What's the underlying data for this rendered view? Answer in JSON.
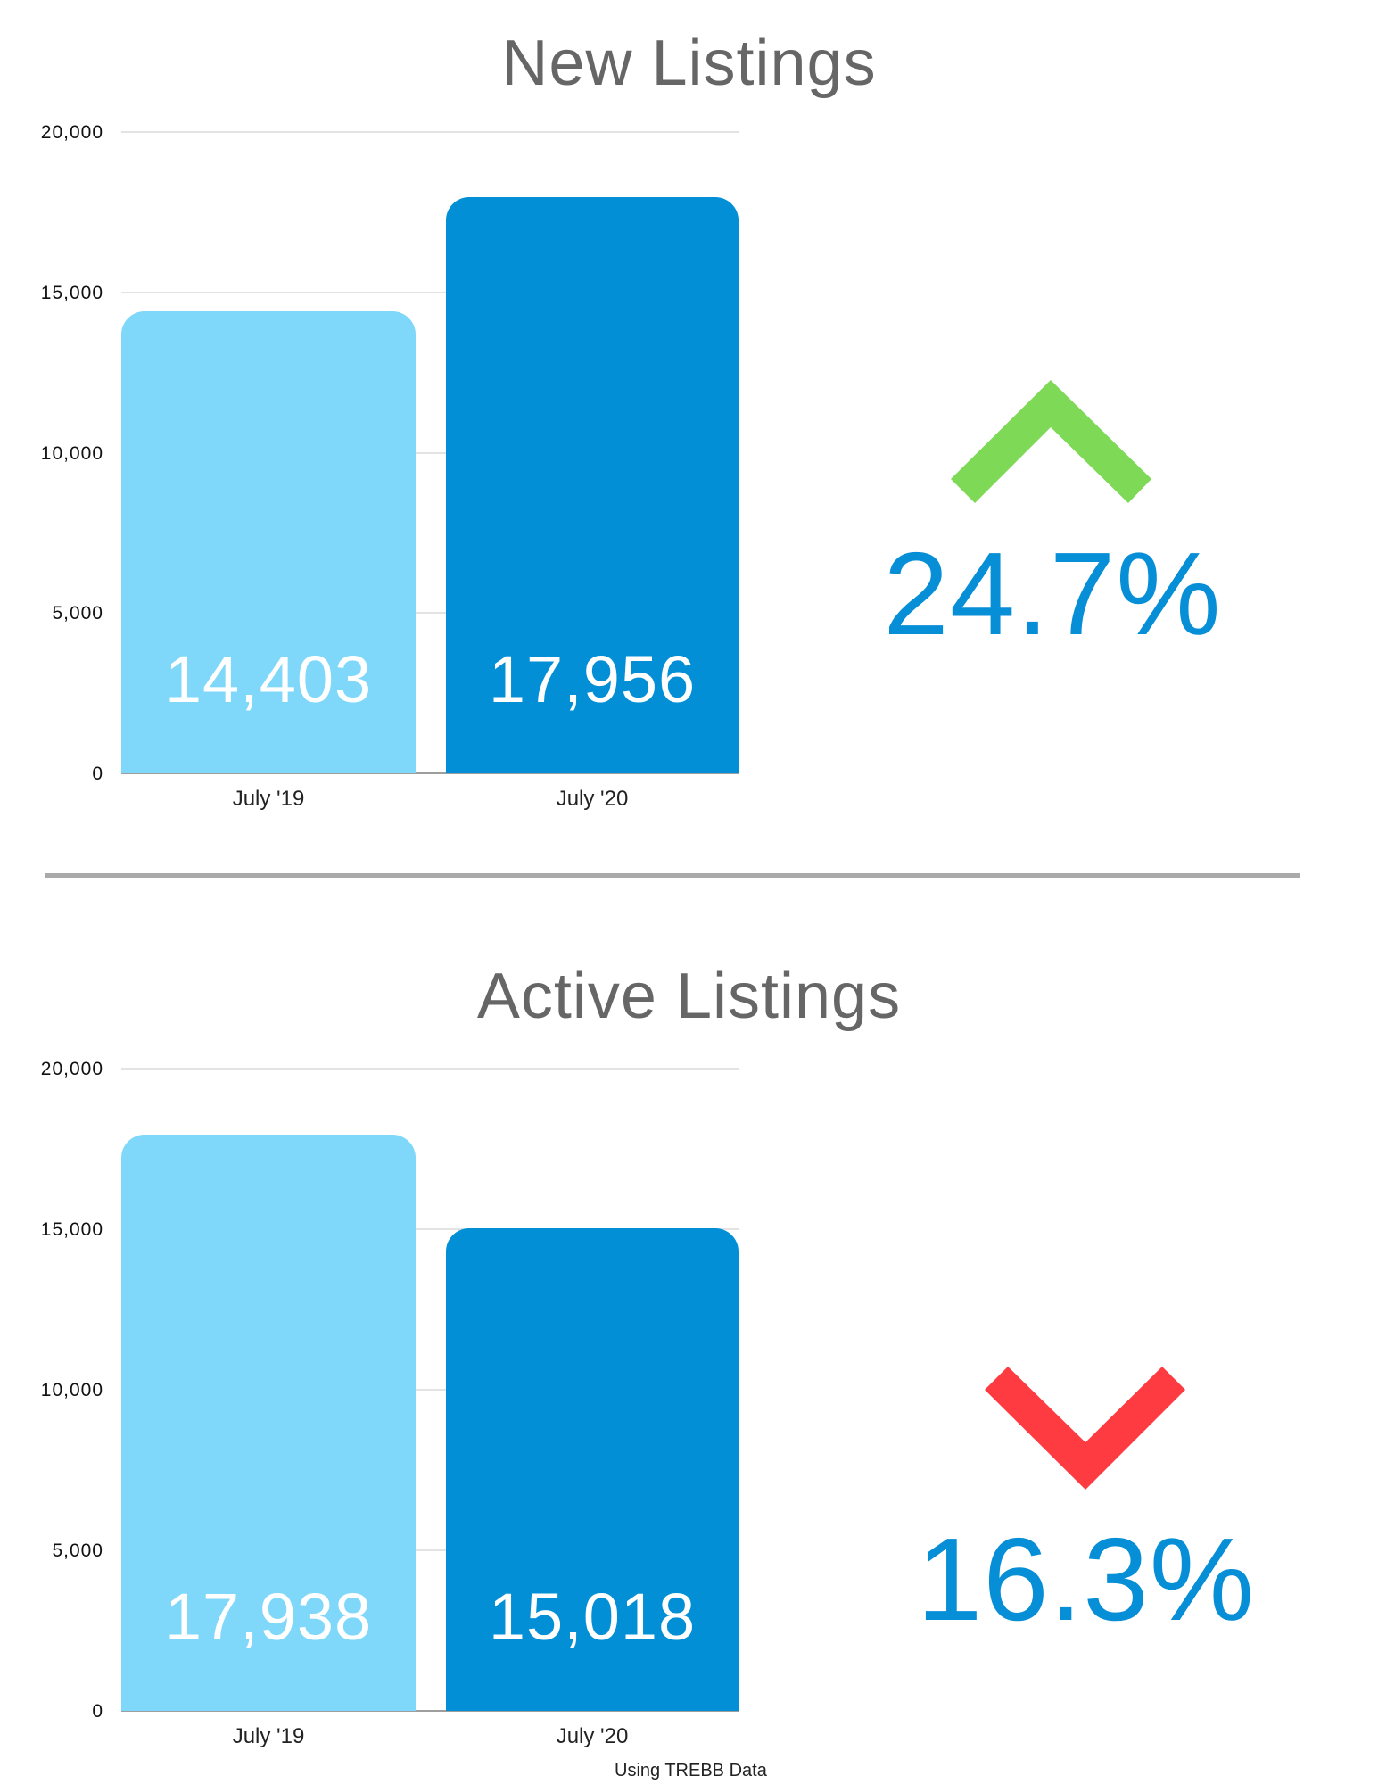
{
  "colors": {
    "bar_prev": "#7FD8F9",
    "bar_curr": "#028FD6",
    "title": "#666666",
    "up": "#7ED957",
    "down": "#FF3B42",
    "percent": "#068FD6",
    "divider": "#AAAAAA",
    "grid": "#E3E3E3"
  },
  "sections": [
    {
      "title": "New Listings",
      "y_ticks": [
        "0",
        "5,000",
        "10,000",
        "15,000",
        "20,000"
      ],
      "bars": [
        {
          "category": "July '19",
          "value": 14403,
          "label": "14,403"
        },
        {
          "category": "July '20",
          "value": 17956,
          "label": "17,956"
        }
      ],
      "change": {
        "direction": "up",
        "icon": "chevron-up-icon",
        "percent": "24.7%"
      }
    },
    {
      "title": "Active Listings",
      "y_ticks": [
        "0",
        "5,000",
        "10,000",
        "15,000",
        "20,000"
      ],
      "bars": [
        {
          "category": "July '19",
          "value": 17938,
          "label": "17,938"
        },
        {
          "category": "July '20",
          "value": 15018,
          "label": "15,018"
        }
      ],
      "change": {
        "direction": "down",
        "icon": "chevron-down-icon",
        "percent": "16.3%"
      }
    }
  ],
  "footer": "Using TREBB Data",
  "chart_data": [
    {
      "type": "bar",
      "title": "New Listings",
      "categories": [
        "July '19",
        "July '20"
      ],
      "values": [
        14403,
        17956
      ],
      "data_labels": [
        "14,403",
        "17,956"
      ],
      "xlabel": "",
      "ylabel": "",
      "ylim": [
        0,
        20000
      ],
      "yticks": [
        0,
        5000,
        10000,
        15000,
        20000
      ],
      "grid": true,
      "legend": null,
      "annotations": [
        {
          "text": "24.7%",
          "direction": "up",
          "color": "#7ED957"
        }
      ]
    },
    {
      "type": "bar",
      "title": "Active Listings",
      "categories": [
        "July '19",
        "July '20"
      ],
      "values": [
        17938,
        15018
      ],
      "data_labels": [
        "17,938",
        "15,018"
      ],
      "xlabel": "",
      "ylabel": "",
      "ylim": [
        0,
        20000
      ],
      "yticks": [
        0,
        5000,
        10000,
        15000,
        20000
      ],
      "grid": true,
      "legend": null,
      "annotations": [
        {
          "text": "16.3%",
          "direction": "down",
          "color": "#FF3B42"
        }
      ]
    }
  ]
}
